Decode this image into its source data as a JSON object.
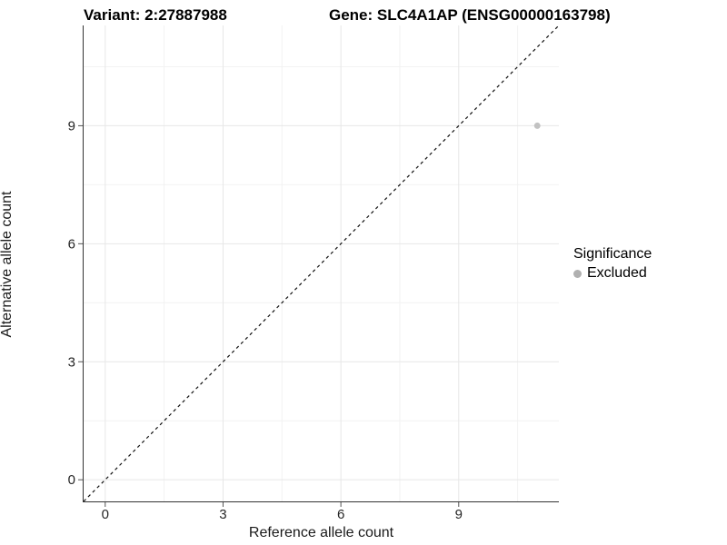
{
  "chart_data": {
    "type": "scatter",
    "title_left": "Variant: 2:27887988",
    "title_right": "Gene: SLC4A1AP (ENSG00000163798)",
    "xlabel": "Reference allele count",
    "ylabel": "Alternative allele count",
    "xlim": [
      -0.55,
      11.55
    ],
    "ylim": [
      -0.55,
      11.55
    ],
    "xticks": [
      0,
      3,
      6,
      9
    ],
    "yticks": [
      0,
      3,
      6,
      9
    ],
    "xticks_minor": [
      1.5,
      4.5,
      7.5,
      10.5
    ],
    "yticks_minor": [
      1.5,
      4.5,
      7.5,
      10.5
    ],
    "grid": true,
    "reference_line": {
      "style": "dashed",
      "from": [
        -0.55,
        -0.55
      ],
      "to": [
        11.55,
        11.55
      ],
      "color": "#111111",
      "meaning": "y = x identity line"
    },
    "series": [
      {
        "name": "Excluded",
        "color": "#c2c2c2",
        "points": [
          {
            "x": 11,
            "y": 9
          }
        ]
      }
    ],
    "legend": {
      "title": "Significance",
      "position": "right",
      "items": [
        {
          "label": "Excluded",
          "color": "#b0b0b0"
        }
      ]
    },
    "colors": {
      "background": "#ffffff",
      "grid_major": "#e7e7e7",
      "grid_minor": "#f2f2f2",
      "axis_line": "#333333",
      "tick_mark": "#555555",
      "tick_label": "#262626"
    }
  }
}
